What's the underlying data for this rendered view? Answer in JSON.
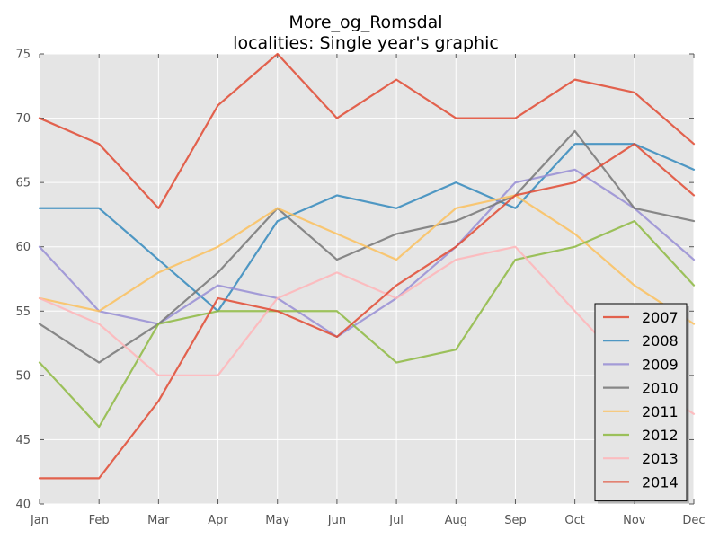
{
  "chart_data": {
    "type": "line",
    "title": "More_og_Romsdal",
    "subtitle": "localities: Single year's graphic",
    "xlabel": "",
    "ylabel": "",
    "categories": [
      "Jan",
      "Feb",
      "Mar",
      "Apr",
      "May",
      "Jun",
      "Jul",
      "Aug",
      "Sep",
      "Oct",
      "Nov",
      "Dec"
    ],
    "ylim": [
      40,
      75
    ],
    "yticks": [
      40,
      45,
      50,
      55,
      60,
      65,
      70,
      75
    ],
    "grid": true,
    "legend_position": "bottom-right",
    "background_color": "#e5e5e5",
    "series": [
      {
        "name": "2007",
        "color": "#e24a33",
        "values": [
          70,
          68,
          63,
          71,
          75,
          70,
          73,
          70,
          70,
          73,
          72,
          68
        ]
      },
      {
        "name": "2008",
        "color": "#348abd",
        "values": [
          63,
          63,
          59,
          55,
          62,
          64,
          63,
          65,
          63,
          68,
          68,
          66
        ]
      },
      {
        "name": "2009",
        "color": "#988ed5",
        "values": [
          60,
          55,
          54,
          57,
          56,
          53,
          56,
          60,
          65,
          66,
          63,
          59
        ]
      },
      {
        "name": "2010",
        "color": "#777777",
        "values": [
          54,
          51,
          54,
          58,
          63,
          59,
          61,
          62,
          64,
          69,
          63,
          62
        ]
      },
      {
        "name": "2011",
        "color": "#fbc15e",
        "values": [
          56,
          55,
          58,
          60,
          63,
          61,
          59,
          63,
          64,
          61,
          57,
          54
        ]
      },
      {
        "name": "2012",
        "color": "#8eba42",
        "values": [
          51,
          46,
          54,
          55,
          55,
          55,
          51,
          52,
          59,
          60,
          62,
          57
        ]
      },
      {
        "name": "2013",
        "color": "#ffb5b8",
        "values": [
          56,
          54,
          50,
          50,
          56,
          58,
          56,
          59,
          60,
          55,
          50,
          47
        ]
      },
      {
        "name": "2014",
        "color": "#e24a33",
        "values": [
          42,
          42,
          48,
          56,
          55,
          53,
          57,
          60,
          64,
          65,
          68,
          64
        ]
      }
    ]
  }
}
